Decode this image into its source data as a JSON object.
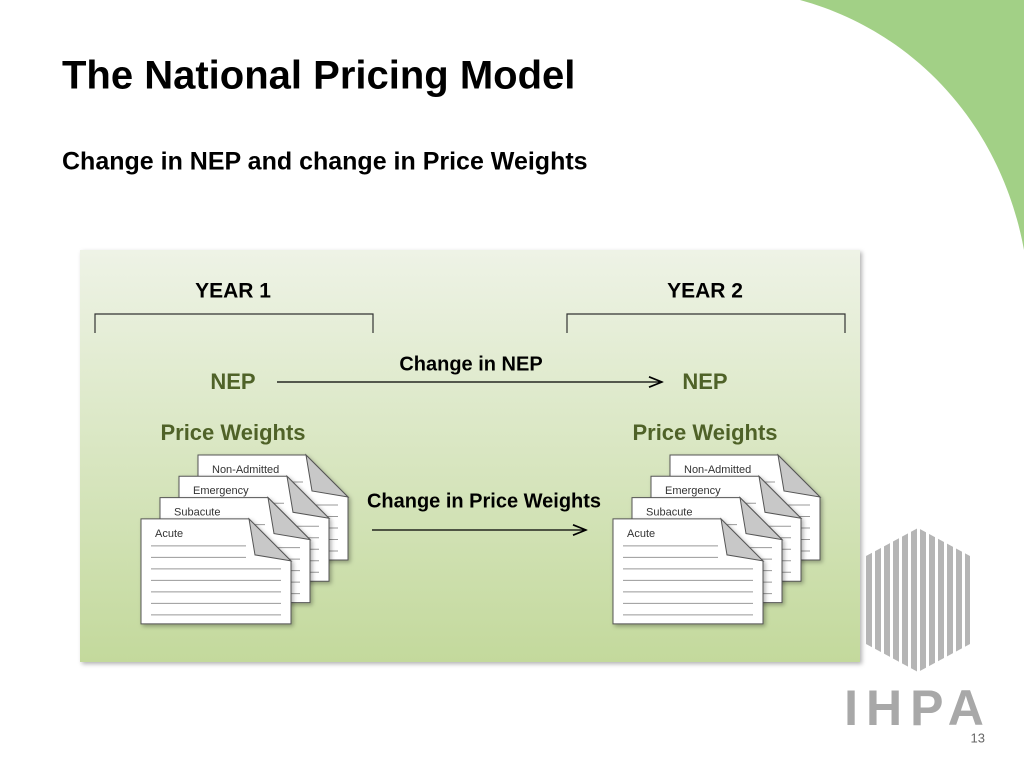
{
  "title": "The National Pricing Model",
  "subtitle": "Change in NEP and change in Price Weights",
  "years": [
    {
      "label": "YEAR 1",
      "nep": "NEP",
      "weights": "Price Weights",
      "documents": [
        "Non-Admitted",
        "Emergency",
        "Subacute",
        "Acute"
      ]
    },
    {
      "label": "YEAR 2",
      "nep": "NEP",
      "weights": "Price Weights",
      "documents": [
        "Non-Admitted",
        "Emergency",
        "Subacute",
        "Acute"
      ]
    }
  ],
  "arrows": [
    "Change in NEP",
    "Change in Price Weights"
  ],
  "logo": "IHPA",
  "page_number": "13"
}
